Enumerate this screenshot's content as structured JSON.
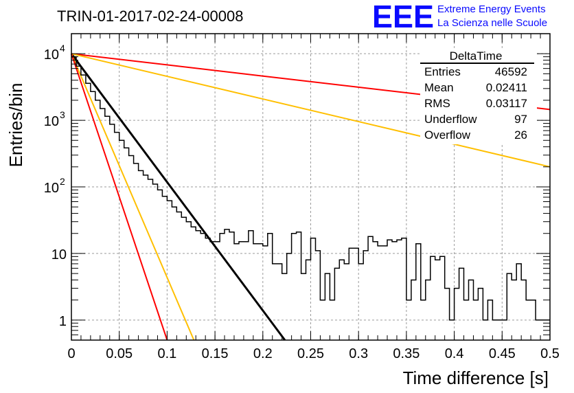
{
  "header": {
    "title": "TRIN-01-2017-02-24-00008",
    "logo": {
      "mark": "EEE",
      "line1": "Extreme Energy Events",
      "line2": "La Scienza nelle Scuole",
      "color": "#0a0aff"
    }
  },
  "stats_box": {
    "title": "DeltaTime",
    "rows": [
      {
        "label": "Entries",
        "value": "46592"
      },
      {
        "label": "Mean",
        "value": "0.02411"
      },
      {
        "label": "RMS",
        "value": "0.03117"
      },
      {
        "label": "Underflow",
        "value": "97"
      },
      {
        "label": "Overflow",
        "value": "26"
      }
    ]
  },
  "chart_data": {
    "type": "line",
    "title": "TRIN-01-2017-02-24-00008",
    "xlabel": "Time difference [s]",
    "ylabel": "Entries/bin",
    "xlim": [
      0,
      0.5
    ],
    "ylim": [
      0.5,
      20000
    ],
    "y_scale": "log",
    "grid": true,
    "x_ticks": [
      {
        "v": 0,
        "label": "0"
      },
      {
        "v": 0.05,
        "label": "0.05"
      },
      {
        "v": 0.1,
        "label": "0.1"
      },
      {
        "v": 0.15,
        "label": "0.15"
      },
      {
        "v": 0.2,
        "label": "0.2"
      },
      {
        "v": 0.25,
        "label": "0.25"
      },
      {
        "v": 0.3,
        "label": "0.3"
      },
      {
        "v": 0.35,
        "label": "0.35"
      },
      {
        "v": 0.4,
        "label": "0.4"
      },
      {
        "v": 0.45,
        "label": "0.45"
      },
      {
        "v": 0.5,
        "label": "0.5"
      }
    ],
    "y_ticks": [
      {
        "v": 1,
        "label": "1"
      },
      {
        "v": 10,
        "label": "10"
      },
      {
        "v": 100,
        "label": "10",
        "exp": "2"
      },
      {
        "v": 1000,
        "label": "10",
        "exp": "3"
      },
      {
        "v": 10000,
        "label": "10",
        "exp": "4"
      }
    ],
    "histogram": {
      "name": "DeltaTime",
      "color": "#000000",
      "bin_width": 0.005,
      "values": [
        9000,
        6500,
        4800,
        3600,
        2700,
        2000,
        1500,
        1150,
        870,
        660,
        500,
        385,
        295,
        225,
        175,
        150,
        130,
        110,
        90,
        72,
        62,
        50,
        42,
        35,
        30,
        25,
        22,
        20,
        17,
        15,
        15,
        20,
        23,
        21,
        14,
        15,
        15,
        22,
        14,
        14,
        13,
        20,
        7,
        7,
        5,
        10,
        20,
        21,
        5,
        8,
        17,
        11,
        2,
        5,
        2,
        6,
        8,
        7,
        12,
        12,
        7,
        11,
        18,
        15,
        13,
        13,
        16,
        15,
        16,
        17,
        2,
        4,
        14,
        2,
        4,
        9,
        8,
        9,
        3,
        1,
        3,
        6,
        2,
        4,
        2,
        3,
        1,
        2,
        1,
        1,
        1,
        5,
        4,
        7,
        4,
        2,
        2,
        1,
        1,
        1
      ]
    },
    "series": [
      {
        "color": "#000000",
        "x": [
          0,
          0.223
        ],
        "y": [
          10000,
          0.5
        ],
        "width": 3
      },
      {
        "color": "#ff0000",
        "x": [
          0,
          0.5
        ],
        "y": [
          10000,
          1450
        ]
      },
      {
        "color": "#ffbf00",
        "x": [
          0,
          0.5
        ],
        "y": [
          10000,
          200
        ]
      },
      {
        "color": "#ffbf00",
        "x": [
          0,
          0.128
        ],
        "y": [
          10000,
          0.5
        ]
      },
      {
        "color": "#ff0000",
        "x": [
          0,
          0.1
        ],
        "y": [
          10000,
          0.5
        ]
      }
    ]
  }
}
